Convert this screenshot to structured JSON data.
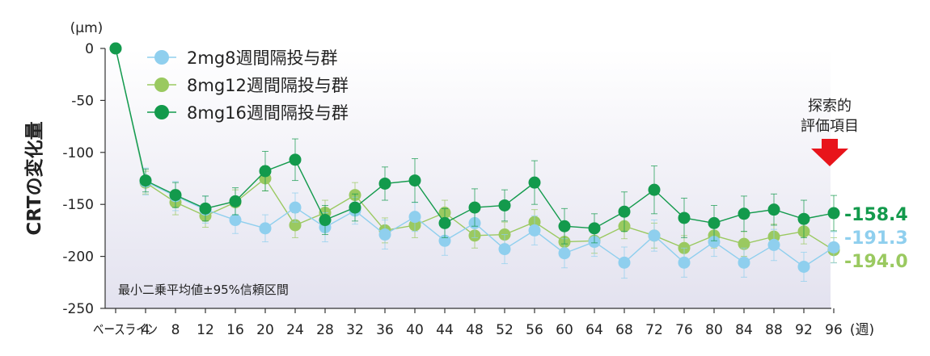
{
  "chart_data": {
    "type": "line",
    "title": "",
    "ylabel": "CRTの変化量",
    "yunit": "(µm)",
    "xunit": "(週)",
    "ylim": [
      -250,
      0
    ],
    "yticks": [
      0,
      -50,
      -100,
      -150,
      -200,
      -250
    ],
    "x": [
      "ベースライン",
      "4",
      "8",
      "12",
      "16",
      "20",
      "24",
      "28",
      "32",
      "36",
      "40",
      "44",
      "48",
      "52",
      "56",
      "60",
      "64",
      "68",
      "72",
      "76",
      "80",
      "84",
      "88",
      "92",
      "96"
    ],
    "series": [
      {
        "name": "2mg8週間隔投与群",
        "color": "#8fcfee",
        "values": [
          0,
          -128,
          -142,
          -155,
          -165,
          -173,
          -153,
          -172,
          -156,
          -179,
          -162,
          -185,
          -168,
          -193,
          -175,
          -197,
          -186,
          -206,
          -180,
          -206,
          -186,
          -206,
          -189,
          -210,
          -191.3
        ],
        "ci": [
          0,
          13,
          14,
          13,
          13,
          13,
          14,
          14,
          13,
          14,
          14,
          14,
          14,
          14,
          14,
          14,
          14,
          15,
          15,
          14,
          14,
          14,
          15,
          14,
          15
        ]
      },
      {
        "name": "8mg12週間隔投与群",
        "color": "#9ac960",
        "values": [
          0,
          -129,
          -148,
          -161,
          -148,
          -125,
          -170,
          -158,
          -141,
          -175,
          -170,
          -158,
          -180,
          -179,
          -167,
          -186,
          -185,
          -171,
          -180,
          -192,
          -180,
          -188,
          -181,
          -176,
          -194.0
        ],
        "ci": [
          0,
          11,
          12,
          11,
          12,
          12,
          12,
          12,
          12,
          12,
          12,
          12,
          12,
          12,
          12,
          12,
          12,
          12,
          12,
          12,
          12,
          12,
          12,
          12,
          12
        ]
      },
      {
        "name": "8mg16週間隔投与群",
        "color": "#139a4c",
        "values": [
          0,
          -127,
          -141,
          -154,
          -147,
          -118,
          -107,
          -165,
          -153,
          -130,
          -127,
          -168,
          -153,
          -151,
          -129,
          -171,
          -173,
          -157,
          -136,
          -163,
          -168,
          -159,
          -155,
          -164,
          -158.4
        ],
        "ci": [
          0,
          11,
          12,
          12,
          13,
          19,
          20,
          14,
          13,
          16,
          21,
          14,
          18,
          15,
          21,
          17,
          14,
          19,
          23,
          19,
          17,
          17,
          15,
          18,
          17
        ]
      }
    ],
    "end_labels": [
      "-158.4",
      "-191.3",
      "-194.0"
    ],
    "note": "最小二乗平均値±95%信頼区間",
    "callout": [
      "探索的",
      "評価項目"
    ],
    "callout_color": "#e8141b",
    "grid": false,
    "legend_position": "top-left"
  }
}
